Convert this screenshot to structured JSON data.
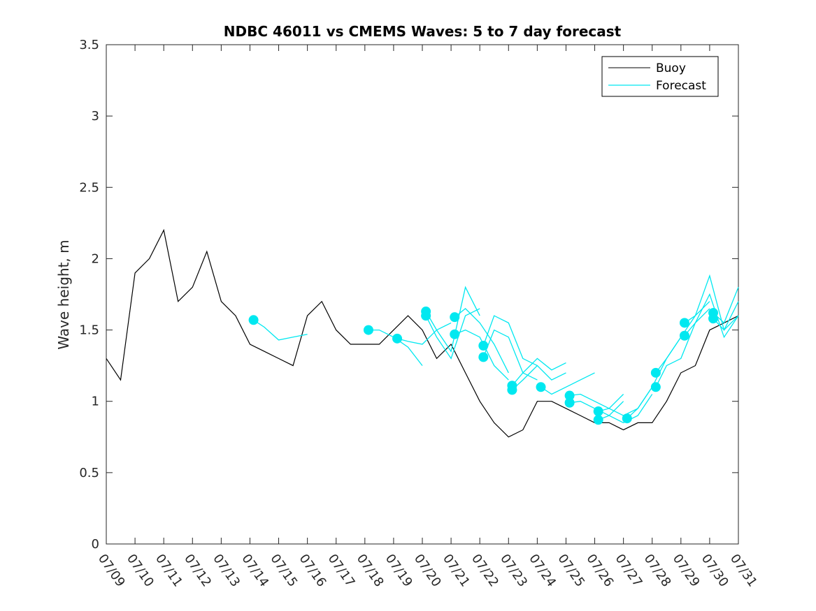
{
  "chart_data": {
    "type": "line",
    "title": "NDBC 46011 vs CMEMS Waves: 5 to 7 day forecast",
    "xlabel": "",
    "ylabel": "Wave height, m",
    "ylim": [
      0,
      3.5
    ],
    "yticks": [
      0,
      0.5,
      1,
      1.5,
      2,
      2.5,
      3,
      3.5
    ],
    "ytick_labels": [
      "0",
      "0.5",
      "1",
      "1.5",
      "2",
      "2.5",
      "3",
      "3.5"
    ],
    "xlim": [
      "07/09",
      "07/31"
    ],
    "xtick_labels": [
      "07/09",
      "07/10",
      "07/11",
      "07/12",
      "07/13",
      "07/14",
      "07/15",
      "07/16",
      "07/17",
      "07/18",
      "07/19",
      "07/20",
      "07/21",
      "07/22",
      "07/23",
      "07/24",
      "07/25",
      "07/26",
      "07/27",
      "07/28",
      "07/29",
      "07/30",
      "07/31"
    ],
    "grid": false,
    "legend_position": "top-right",
    "colors": {
      "buoy": "#000000",
      "forecast": "#00e8f0"
    },
    "series": [
      {
        "name": "Buoy",
        "x": [
          "07/09",
          "07/09 12:00",
          "07/10",
          "07/10 12:00",
          "07/11",
          "07/11 12:00",
          "07/12",
          "07/12 12:00",
          "07/13",
          "07/13 12:00",
          "07/14",
          "07/14 12:00",
          "07/15",
          "07/15 12:00",
          "07/16",
          "07/16 12:00",
          "07/17",
          "07/17 12:00",
          "07/18",
          "07/18 12:00",
          "07/19",
          "07/19 12:00",
          "07/20",
          "07/20 12:00",
          "07/21",
          "07/21 12:00",
          "07/22",
          "07/22 12:00",
          "07/23",
          "07/23 12:00",
          "07/24",
          "07/24 12:00",
          "07/25",
          "07/25 12:00",
          "07/26",
          "07/26 12:00",
          "07/27",
          "07/27 12:00",
          "07/28",
          "07/28 12:00",
          "07/29",
          "07/29 12:00",
          "07/30",
          "07/30 12:00",
          "07/31"
        ],
        "values": [
          1.3,
          1.15,
          1.9,
          2.0,
          2.2,
          1.7,
          1.8,
          2.05,
          1.7,
          1.6,
          1.4,
          1.35,
          1.3,
          1.25,
          1.6,
          1.7,
          1.5,
          1.4,
          1.4,
          1.4,
          1.5,
          1.6,
          1.5,
          1.3,
          1.4,
          1.2,
          1.0,
          0.85,
          0.75,
          0.8,
          1.0,
          1.0,
          0.95,
          0.9,
          0.85,
          0.85,
          0.8,
          0.85,
          0.85,
          1.0,
          1.2,
          1.25,
          1.5,
          1.55,
          1.6
        ]
      },
      {
        "name": "Forecast",
        "segments": [
          {
            "x": [
              "07/14 03:00",
              "07/14 12:00",
              "07/15",
              "07/15 12:00",
              "07/16"
            ],
            "values": [
              1.57,
              1.52,
              1.43,
              1.45,
              1.47
            ]
          },
          {
            "x": [
              "07/18 03:00",
              "07/18 12:00",
              "07/19",
              "07/19 12:00",
              "07/20"
            ],
            "values": [
              1.5,
              1.5,
              1.45,
              1.38,
              1.25
            ]
          },
          {
            "x": [
              "07/19 03:00",
              "07/19 12:00",
              "07/20",
              "07/20 12:00",
              "07/21"
            ],
            "values": [
              1.44,
              1.42,
              1.4,
              1.5,
              1.55
            ]
          },
          {
            "x": [
              "07/20 03:00",
              "07/20 12:00",
              "07/21",
              "07/21 12:00",
              "07/22"
            ],
            "values": [
              1.6,
              1.45,
              1.3,
              1.6,
              1.65
            ]
          },
          {
            "x": [
              "07/20 03:00",
              "07/20 12:00",
              "07/21",
              "07/21 12:00",
              "07/22"
            ],
            "values": [
              1.63,
              1.5,
              1.35,
              1.8,
              1.6
            ]
          },
          {
            "x": [
              "07/21 03:00",
              "07/21 12:00",
              "07/22",
              "07/22 12:00",
              "07/23"
            ],
            "values": [
              1.59,
              1.65,
              1.55,
              1.4,
              1.2
            ]
          },
          {
            "x": [
              "07/21 03:00",
              "07/21 12:00",
              "07/22",
              "07/22 12:00",
              "07/23"
            ],
            "values": [
              1.47,
              1.5,
              1.45,
              1.25,
              1.15
            ]
          },
          {
            "x": [
              "07/22 03:00",
              "07/22 12:00",
              "07/23",
              "07/23 12:00",
              "07/24"
            ],
            "values": [
              1.39,
              1.6,
              1.55,
              1.3,
              1.25
            ]
          },
          {
            "x": [
              "07/22 03:00",
              "07/22 12:00",
              "07/23",
              "07/23 12:00",
              "07/24"
            ],
            "values": [
              1.31,
              1.5,
              1.45,
              1.2,
              1.15
            ]
          },
          {
            "x": [
              "07/23 03:00",
              "07/23 12:00",
              "07/24",
              "07/24 12:00",
              "07/25"
            ],
            "values": [
              1.11,
              1.2,
              1.3,
              1.22,
              1.27
            ]
          },
          {
            "x": [
              "07/23 03:00",
              "07/23 12:00",
              "07/24",
              "07/24 12:00",
              "07/25"
            ],
            "values": [
              1.08,
              1.15,
              1.25,
              1.15,
              1.2
            ]
          },
          {
            "x": [
              "07/24 03:00",
              "07/24 12:00",
              "07/25",
              "07/25 12:00",
              "07/26"
            ],
            "values": [
              1.1,
              1.05,
              1.1,
              1.15,
              1.2
            ]
          },
          {
            "x": [
              "07/25 03:00",
              "07/25 12:00",
              "07/26",
              "07/26 12:00",
              "07/27"
            ],
            "values": [
              1.04,
              1.05,
              1.0,
              0.95,
              1.05
            ]
          },
          {
            "x": [
              "07/25 03:00",
              "07/25 12:00",
              "07/26",
              "07/26 12:00",
              "07/27"
            ],
            "values": [
              0.99,
              1.0,
              0.95,
              0.9,
              1.0
            ]
          },
          {
            "x": [
              "07/26 03:00",
              "07/26 12:00",
              "07/27",
              "07/27 12:00",
              "07/28"
            ],
            "values": [
              0.93,
              0.95,
              0.9,
              0.95,
              1.1
            ]
          },
          {
            "x": [
              "07/26 03:00",
              "07/26 12:00",
              "07/27",
              "07/27 12:00",
              "07/28"
            ],
            "values": [
              0.87,
              0.9,
              0.85,
              0.9,
              1.05
            ]
          },
          {
            "x": [
              "07/27 03:00",
              "07/27 12:00",
              "07/28",
              "07/28 12:00",
              "07/29"
            ],
            "values": [
              0.88,
              0.95,
              1.1,
              1.3,
              1.45
            ]
          },
          {
            "x": [
              "07/28 03:00",
              "07/28 12:00",
              "07/29",
              "07/29 12:00",
              "07/30"
            ],
            "values": [
              1.2,
              1.3,
              1.45,
              1.6,
              1.7
            ]
          },
          {
            "x": [
              "07/28 03:00",
              "07/28 12:00",
              "07/29",
              "07/29 12:00",
              "07/30"
            ],
            "values": [
              1.1,
              1.25,
              1.3,
              1.55,
              1.65
            ]
          },
          {
            "x": [
              "07/29 03:00",
              "07/29 12:00",
              "07/30",
              "07/30 12:00",
              "07/31"
            ],
            "values": [
              1.55,
              1.6,
              1.88,
              1.5,
              1.7
            ]
          },
          {
            "x": [
              "07/29 03:00",
              "07/29 12:00",
              "07/30",
              "07/30 12:00",
              "07/31"
            ],
            "values": [
              1.46,
              1.55,
              1.75,
              1.45,
              1.6
            ]
          },
          {
            "x": [
              "07/30 03:00",
              "07/30 12:00",
              "07/31"
            ],
            "values": [
              1.62,
              1.55,
              1.8
            ]
          },
          {
            "x": [
              "07/30 03:00",
              "07/30 12:00",
              "07/31"
            ],
            "values": [
              1.58,
              1.5,
              1.6
            ]
          }
        ],
        "markers": {
          "x": [
            "07/14 03:00",
            "07/18 03:00",
            "07/19 03:00",
            "07/20 03:00",
            "07/20 03:00",
            "07/21 03:00",
            "07/21 03:00",
            "07/22 03:00",
            "07/22 03:00",
            "07/23 03:00",
            "07/23 03:00",
            "07/24 03:00",
            "07/25 03:00",
            "07/25 03:00",
            "07/26 03:00",
            "07/26 03:00",
            "07/27 03:00",
            "07/28 03:00",
            "07/28 03:00",
            "07/29 03:00",
            "07/29 03:00",
            "07/30 03:00",
            "07/30 03:00"
          ],
          "values": [
            1.57,
            1.5,
            1.44,
            1.6,
            1.63,
            1.59,
            1.47,
            1.39,
            1.31,
            1.11,
            1.08,
            1.1,
            1.04,
            0.99,
            0.93,
            0.87,
            0.88,
            1.2,
            1.1,
            1.55,
            1.46,
            1.62,
            1.58
          ]
        }
      }
    ]
  }
}
